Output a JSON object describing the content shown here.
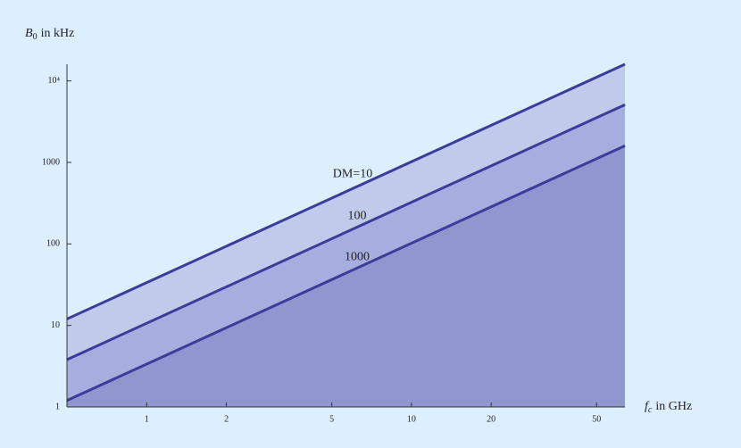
{
  "chart_data": {
    "type": "line",
    "xlabel": {
      "symbol": "f",
      "sub": "c",
      "unit": "in GHz"
    },
    "ylabel": {
      "symbol": "B",
      "sub": "0",
      "unit": "in kHz"
    },
    "xscale": "log",
    "yscale": "log",
    "xlim": [
      0.5,
      64
    ],
    "ylim": [
      1,
      16000
    ],
    "xticks": [
      1,
      2,
      5,
      10,
      20,
      50
    ],
    "yticks": [
      1,
      10,
      100,
      1000,
      {
        "value": 10000,
        "label": "10⁴"
      }
    ],
    "x": [
      0.5,
      64
    ],
    "series": [
      {
        "name": "DM=10",
        "color": "#3c3c9a",
        "fill": "#c0cbeb",
        "values": [
          12,
          16000
        ]
      },
      {
        "name": "100",
        "color": "#3c3c9a",
        "fill": "#a6aedf",
        "values": [
          3.8,
          5100
        ]
      },
      {
        "name": "1000",
        "color": "#3c3c9a",
        "fill": "#9097cf",
        "values": [
          1.2,
          1600
        ]
      }
    ]
  }
}
